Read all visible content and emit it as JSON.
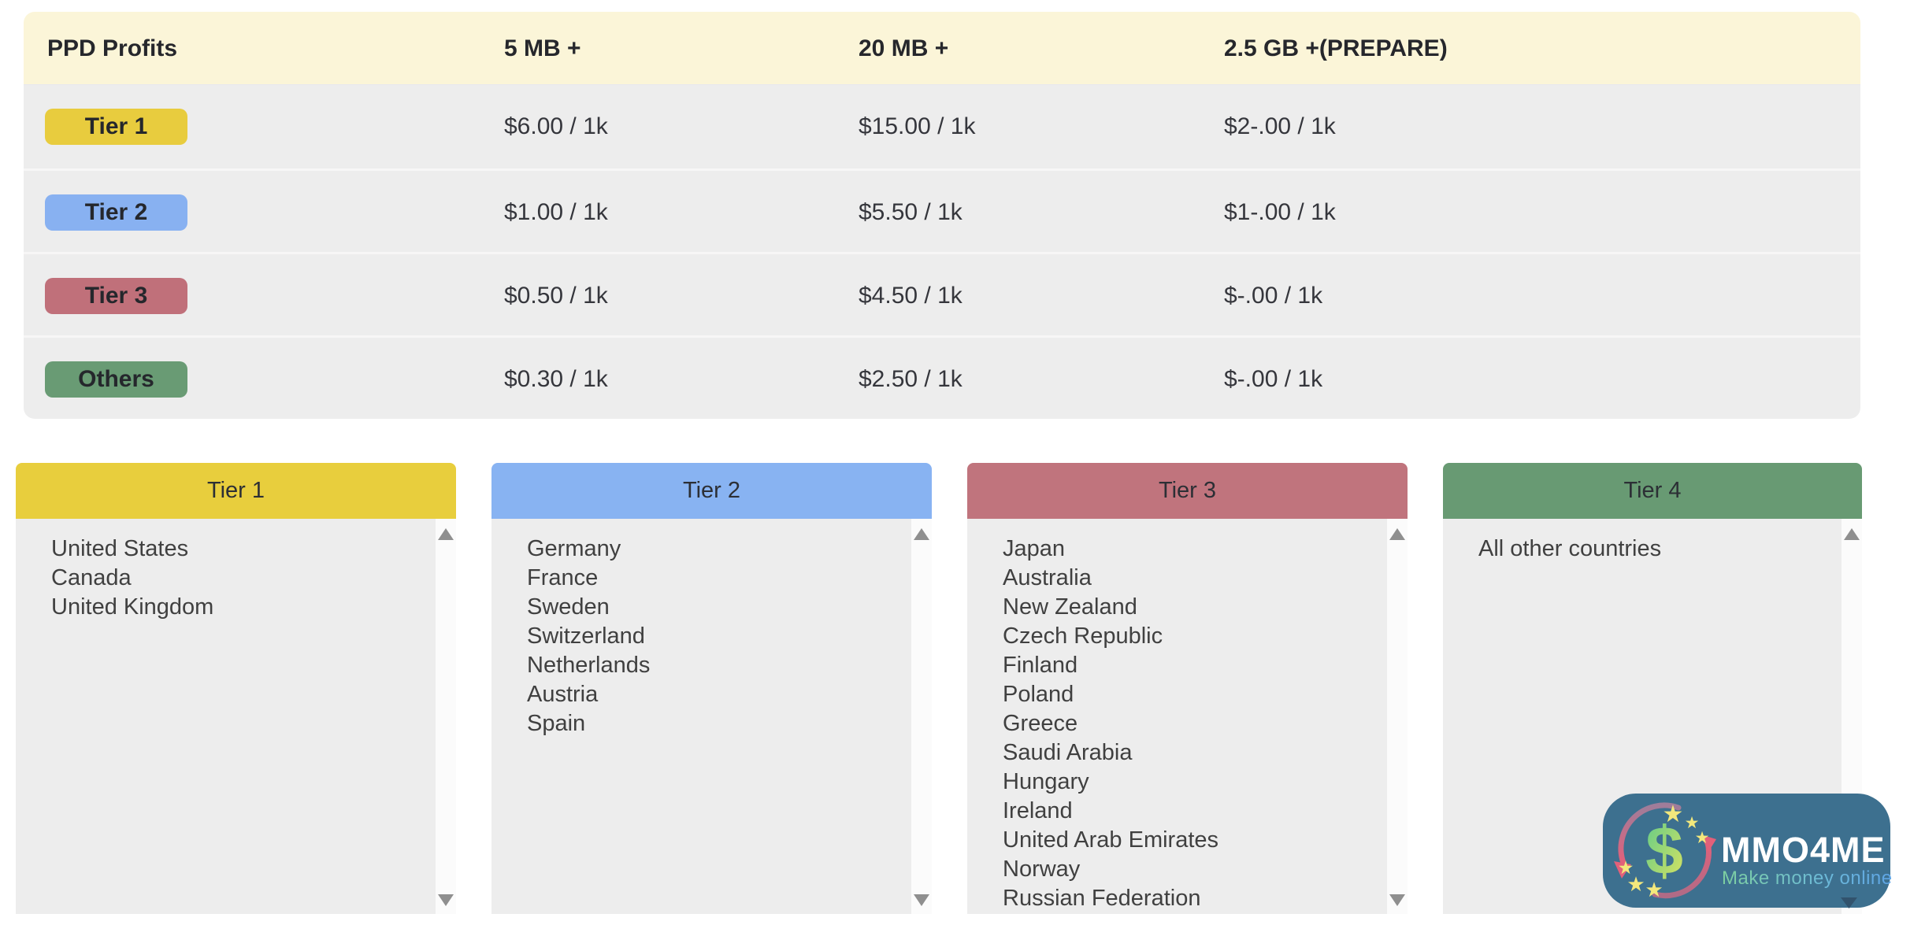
{
  "pricing_table": {
    "title": "PPD Profits",
    "columns": [
      "5 MB +",
      "20 MB +",
      "2.5 GB +(PREPARE)"
    ],
    "header_bg": "#fbf5d8",
    "row_bg": "#ededed",
    "rows": [
      {
        "tier": "Tier 1",
        "color": "#e8cc3e",
        "prices": [
          "$6.00 / 1k",
          "$15.00 / 1k",
          "$2-.00 / 1k"
        ]
      },
      {
        "tier": "Tier 2",
        "color": "#88b1f1",
        "prices": [
          "$1.00 / 1k",
          "$5.50 / 1k",
          "$1-.00 / 1k"
        ]
      },
      {
        "tier": "Tier 3",
        "color": "#c0707a",
        "prices": [
          "$0.50 / 1k",
          "$4.50 / 1k",
          "$-.00 / 1k"
        ]
      },
      {
        "tier": "Others",
        "color": "#699b74",
        "prices": [
          "$0.30 / 1k",
          "$2.50 / 1k",
          "$-.00 / 1k"
        ]
      }
    ]
  },
  "tier_lists": [
    {
      "title": "Tier 1",
      "color": "#e8ce3d",
      "countries": [
        "United States",
        "Canada",
        "United Kingdom"
      ]
    },
    {
      "title": "Tier 2",
      "color": "#88b3f2",
      "countries": [
        "Germany",
        "France",
        "Sweden",
        "Switzerland",
        "Netherlands",
        "Austria",
        "Spain"
      ]
    },
    {
      "title": "Tier 3",
      "color": "#c0747d",
      "countries": [
        "Japan",
        "Australia",
        "New Zealand",
        "Czech Republic",
        "Finland",
        "Poland",
        "Greece",
        "Saudi Arabia",
        "Hungary",
        "Ireland",
        "United Arab Emirates",
        "Norway",
        "Russian Federation"
      ]
    },
    {
      "title": "Tier 4",
      "color": "#689a73",
      "countries": [
        "All other countries"
      ]
    }
  ],
  "logo": {
    "brand": "MMO4ME",
    "tagline": "Make money online",
    "dollar": "$",
    "bg": "#3d708f"
  }
}
